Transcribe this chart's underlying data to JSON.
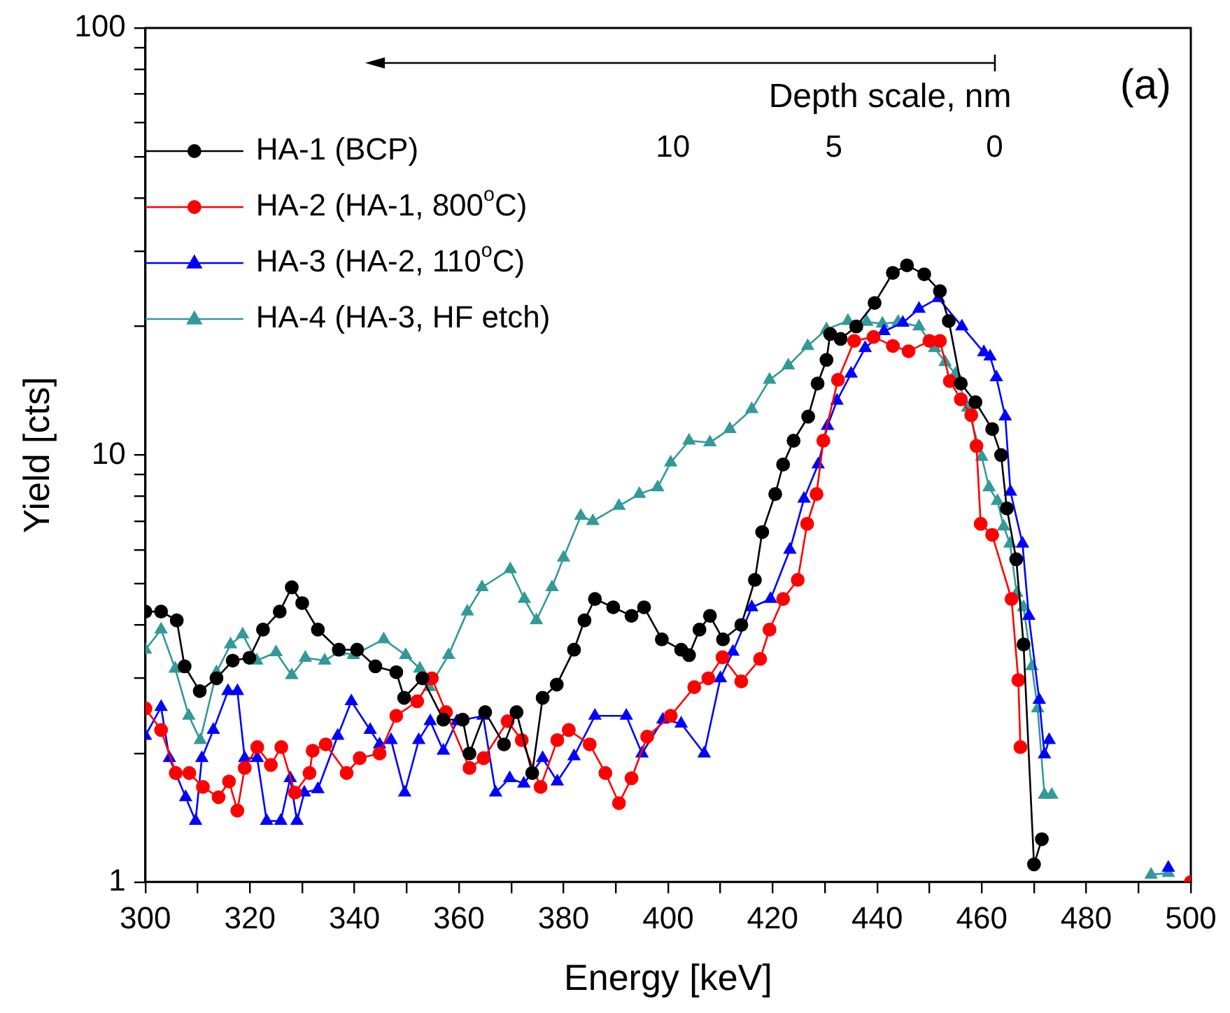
{
  "chart_data": {
    "type": "line",
    "xlabel": "Energy [keV]",
    "ylabel": "Yield [cts]",
    "x2label": "Depth scale, nm",
    "annotations": [
      "(a)"
    ],
    "xlim": [
      300,
      500
    ],
    "xticks": [
      300,
      {
        "value": 310,
        "label": null
      },
      320,
      {
        "value": 330,
        "label": null
      },
      340,
      {
        "value": 350,
        "label": null
      },
      360,
      {
        "value": 370,
        "label": null
      },
      380,
      {
        "value": 390,
        "label": null
      },
      400,
      {
        "value": 410,
        "label": null
      },
      420,
      {
        "value": 430,
        "label": null
      },
      440,
      {
        "value": 450,
        "label": null
      },
      460,
      {
        "value": 470,
        "label": null
      },
      480,
      {
        "value": 490,
        "label": null
      },
      500
    ],
    "ylim": [
      1,
      100
    ],
    "yticks": [
      1,
      {
        "value": 2,
        "label": null
      },
      {
        "value": 3,
        "label": null
      },
      {
        "value": 4,
        "label": null
      },
      {
        "value": 5,
        "label": null
      },
      {
        "value": 6,
        "label": null
      },
      {
        "value": 7,
        "label": null
      },
      {
        "value": 8,
        "label": null
      },
      {
        "value": 9,
        "label": null
      },
      10,
      {
        "value": 20,
        "label": null
      },
      {
        "value": 30,
        "label": null
      },
      {
        "value": 40,
        "label": null
      },
      {
        "value": 50,
        "label": null
      },
      {
        "value": 60,
        "label": null
      },
      {
        "value": 70,
        "label": null
      },
      {
        "value": 80,
        "label": null
      },
      {
        "value": 90,
        "label": null
      },
      100
    ],
    "x2lim": [
      26.4,
      -6.1
    ],
    "x2ticks": [
      10,
      5,
      0
    ],
    "log": "y",
    "grid": false,
    "legend": "top left",
    "line_style": "solid",
    "series": [
      {
        "name": "HA-1 (BCP)",
        "color": "#000000",
        "marker": "circle",
        "x": [
          300,
          303,
          306,
          307.5,
          310.4,
          313.6,
          316.7,
          319.9,
          322.5,
          325.7,
          328,
          330,
          333,
          337,
          340.5,
          344,
          348,
          349.5,
          353,
          357,
          360.7,
          362,
          365,
          368.6,
          371,
          374,
          376,
          378.7,
          382,
          384,
          386,
          389.5,
          393,
          395.4,
          398.8,
          402.5,
          404,
          406,
          408,
          410.5,
          414,
          416.6,
          418,
          420.5,
          422,
          424,
          426.8,
          428.6,
          430.3,
          431,
          433,
          436,
          439.5,
          443,
          445.7,
          449,
          452,
          453.7,
          456,
          458.8,
          462,
          463.7,
          464.8,
          466.6,
          468,
          470,
          471.5
        ],
        "values": [
          4.3,
          4.3,
          4.1,
          3.2,
          2.8,
          3.0,
          3.3,
          3.35,
          3.9,
          4.3,
          4.9,
          4.5,
          3.9,
          3.5,
          3.5,
          3.2,
          3.1,
          2.7,
          3.0,
          2.4,
          2.4,
          2.0,
          2.5,
          2.1,
          2.5,
          1.8,
          2.7,
          2.9,
          3.5,
          4.1,
          4.6,
          4.4,
          4.2,
          4.4,
          3.7,
          3.5,
          3.4,
          3.9,
          4.2,
          3.7,
          4.0,
          5.1,
          6.6,
          8.1,
          9.5,
          10.8,
          12.3,
          14.7,
          16.7,
          19.2,
          18.7,
          20,
          22.7,
          26.7,
          27.8,
          26.5,
          24.2,
          20.6,
          14.7,
          13.3,
          11.5,
          10,
          7.5,
          5.7,
          3.6,
          1.1,
          1.26
        ]
      },
      {
        "name": "HA-2 (HA-1, 800$^{o}$C)",
        "color": "#ff0000",
        "marker": "circle",
        "x": [
          300,
          303,
          305.8,
          308.4,
          311,
          314,
          316,
          317.6,
          319,
          321.4,
          324,
          326,
          328.6,
          331.4,
          332,
          334.5,
          338.5,
          341,
          344.8,
          348,
          352,
          354.8,
          357.5,
          362,
          364.7,
          369.3,
          372,
          375.6,
          378.8,
          381,
          385,
          388,
          390.6,
          393,
          396,
          400.5,
          405,
          407.7,
          410.4,
          414,
          417.6,
          419.4,
          422,
          424.8,
          426.6,
          428.4,
          429.7,
          432.5,
          435.6,
          439.3,
          443,
          446,
          450,
          452,
          453.9,
          456,
          458,
          459,
          459.8,
          462,
          465.7,
          467,
          467.4,
          480,
          500
        ],
        "values": [
          2.55,
          2.27,
          1.8,
          1.8,
          1.67,
          1.58,
          1.72,
          1.47,
          1.85,
          2.07,
          1.88,
          2.07,
          1.62,
          1.8,
          2.03,
          2.1,
          1.8,
          1.95,
          2.0,
          2.45,
          2.65,
          3.0,
          2.5,
          1.85,
          1.95,
          2.38,
          2.15,
          1.67,
          2.15,
          2.27,
          2.1,
          1.8,
          1.53,
          1.75,
          2.19,
          2.45,
          2.86,
          3.0,
          3.36,
          2.95,
          3.33,
          3.9,
          4.6,
          5.1,
          6.9,
          8.1,
          10.8,
          15,
          18.5,
          18.9,
          18,
          17.5,
          18.5,
          18.5,
          14.9,
          13.5,
          12.4,
          10.5,
          6.9,
          6.5,
          4.6,
          2.97,
          2.07,
          null,
          1.0
        ]
      },
      {
        "name": "HA-3 (HA-2, 110$^{o}$C)",
        "color": "#0000ff",
        "marker": "triangle",
        "x": [
          300,
          303,
          304.6,
          307.7,
          309.6,
          310.8,
          313,
          315.8,
          317.6,
          319,
          321.4,
          323.2,
          325.9,
          327.7,
          329,
          330.4,
          333,
          336.8,
          339.4,
          343,
          344.8,
          347,
          349.6,
          352.3,
          354.5,
          357,
          359.6,
          364.6,
          367,
          369.7,
          372.4,
          376,
          378.8,
          382,
          386,
          392,
          395,
          399,
          402.5,
          406.9,
          410,
          412.4,
          416,
          419.6,
          423.3,
          426,
          428.7,
          430.5,
          432.3,
          435,
          437.7,
          441.3,
          444.9,
          448,
          451.7,
          456.2,
          460.4,
          461.6,
          462.8,
          464.5,
          465.5,
          467.8,
          469,
          471,
          472,
          472.9,
          480,
          495.7
        ],
        "values": [
          2.2,
          2.57,
          1.95,
          1.58,
          1.39,
          1.95,
          2.27,
          2.8,
          2.8,
          1.95,
          1.95,
          1.39,
          1.39,
          1.75,
          1.39,
          1.62,
          1.65,
          2.2,
          2.65,
          2.27,
          2.1,
          2.15,
          1.62,
          2.15,
          2.38,
          2.03,
          2.38,
          2.45,
          1.62,
          1.75,
          1.7,
          1.95,
          1.72,
          1.97,
          2.45,
          2.45,
          2.0,
          2.4,
          2.35,
          2.0,
          3.0,
          3.46,
          4.4,
          4.6,
          6.0,
          7.9,
          9.5,
          11.7,
          13.4,
          15.5,
          17.8,
          19.5,
          20.4,
          22,
          23.3,
          20,
          17.4,
          17,
          15.2,
          12.3,
          8.2,
          6.2,
          4.2,
          2.67,
          1.99,
          2.15,
          null,
          1.08
        ]
      },
      {
        "name": "HA-4 (HA-3, HF etch)",
        "color": "#339999",
        "marker": "triangle",
        "x": [
          300,
          303,
          305.7,
          308.3,
          310.5,
          313.6,
          316.3,
          318.6,
          321.3,
          325,
          328,
          330.6,
          334.3,
          337,
          339.8,
          345.6,
          349.8,
          352.5,
          354.3,
          358,
          361.6,
          364.4,
          369.8,
          372.5,
          374.8,
          377.8,
          380,
          383.3,
          385.6,
          390.6,
          394.5,
          398,
          400.5,
          404,
          408,
          411.8,
          416,
          419.4,
          423,
          426.7,
          430.3,
          434.4,
          438,
          441,
          444,
          448,
          451,
          453,
          455,
          457.3,
          460,
          461.4,
          463,
          464.2,
          465.4,
          466.7,
          468,
          469.6,
          470.7,
          472,
          473.4,
          480,
          492.4,
          495.7
        ],
        "values": [
          3.5,
          3.9,
          3.16,
          2.45,
          2.15,
          3.1,
          3.6,
          3.8,
          3.3,
          3.45,
          3.05,
          3.35,
          3.3,
          3.46,
          3.4,
          3.7,
          3.4,
          3.16,
          2.86,
          3.4,
          4.3,
          4.9,
          5.4,
          4.6,
          4.1,
          4.9,
          5.75,
          7.2,
          7.0,
          7.6,
          8.1,
          8.4,
          9.6,
          10.8,
          10.7,
          11.5,
          12.8,
          15,
          16.2,
          18,
          19.7,
          20.6,
          20.5,
          20.3,
          20.5,
          20,
          17.8,
          16.5,
          15.5,
          12.9,
          9.9,
          8.4,
          7.8,
          6.8,
          6.2,
          4.75,
          4.4,
          3.2,
          2.55,
          1.6,
          1.6,
          null,
          1.04,
          1.05
        ]
      }
    ]
  }
}
